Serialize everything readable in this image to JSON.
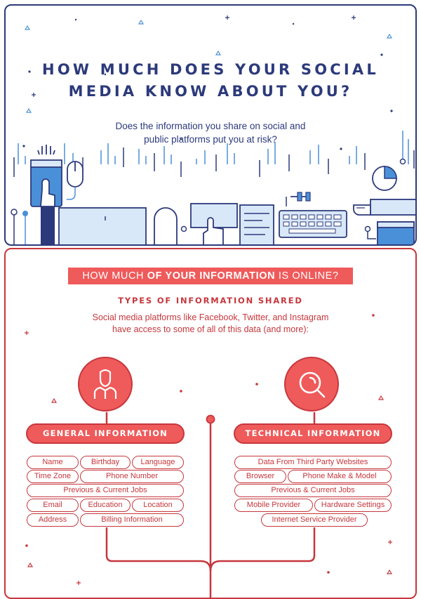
{
  "header": {
    "title_line1": "HOW MUCH DOES YOUR SOCIAL",
    "title_line2": "MEDIA KNOW ABOUT YOU?",
    "subtitle_line1": "Does the information you share on social and",
    "subtitle_line2": "public platforms put you at risk?"
  },
  "section": {
    "banner_part1": "HOW MUCH ",
    "banner_bold": "OF YOUR INFORMATION",
    "banner_part2": " IS ONLINE?",
    "types_heading": "TYPES OF INFORMATION SHARED",
    "desc_line1": "Social media platforms like Facebook, Twitter, and Instagram",
    "desc_line2": "have access to some of all of this data (and more):"
  },
  "general": {
    "label": "GENERAL INFORMATION",
    "icon": "person-icon",
    "items": [
      "Name",
      "Birthday",
      "Language",
      "Time Zone",
      "Phone Number",
      "Previous & Current Jobs",
      "Email",
      "Education",
      "Location",
      "Address",
      "Billing Information"
    ]
  },
  "technical": {
    "label": "TECHNICAL INFORMATION",
    "icon": "search-icon",
    "items": [
      "Data From Third Party Websites",
      "Browser",
      "Phone Make & Model",
      "Previous & Current Jobs",
      "Mobile Provider",
      "Hardware Settings",
      "Internet Service Provider"
    ]
  },
  "colors": {
    "navy": "#2c3a7b",
    "red": "#c6373d",
    "coral": "#ef5a5a",
    "light_blue": "#d9e8f8",
    "mid_blue": "#4a90d9"
  }
}
